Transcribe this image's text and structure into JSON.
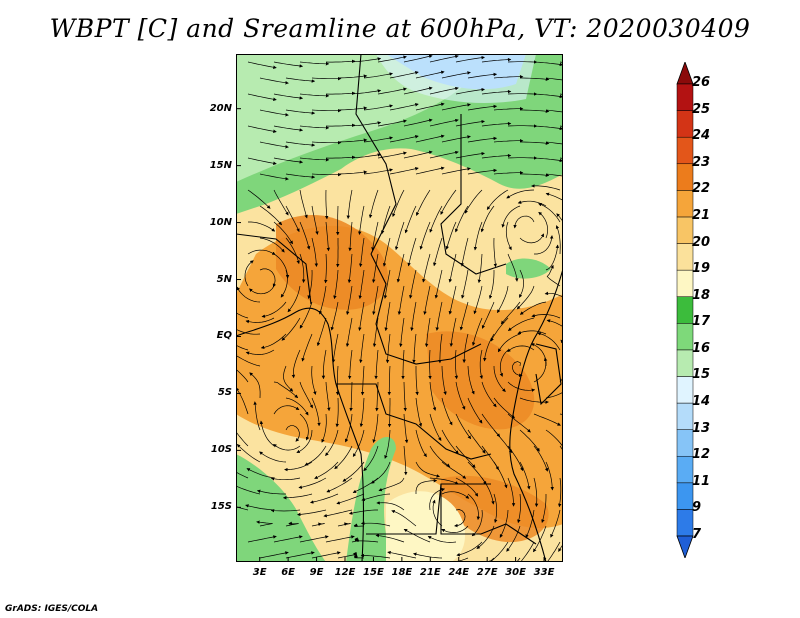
{
  "title": "WBPT [C] and Sreamline at 600hPa, VT: 2020030409",
  "footer": "GrADS: IGES/COLA",
  "map": {
    "lat_labels": [
      "20N",
      "15N",
      "10N",
      "5N",
      "EQ",
      "5S",
      "10S",
      "15S"
    ],
    "lat_values": [
      20,
      15,
      10,
      5,
      0,
      -5,
      -10,
      -15
    ],
    "lon_labels": [
      "3E",
      "6E",
      "9E",
      "12E",
      "15E",
      "18E",
      "21E",
      "24E",
      "27E",
      "30E",
      "33E"
    ],
    "lon_values": [
      3,
      6,
      9,
      12,
      15,
      18,
      21,
      24,
      27,
      30,
      33
    ],
    "lon_range": [
      0.5,
      35.0
    ],
    "lat_range": [
      -19.8,
      24.8
    ]
  },
  "colorbar": {
    "labels": [
      "7",
      "9",
      "11",
      "12",
      "13",
      "14",
      "15",
      "16",
      "17",
      "18",
      "19",
      "20",
      "21",
      "22",
      "23",
      "24",
      "25",
      "26"
    ],
    "colors": [
      "#1f5fd6",
      "#2d7be8",
      "#3c96f0",
      "#5aacf4",
      "#86c4f7",
      "#b4dcfa",
      "#e0f4ff",
      "#b7ebb0",
      "#7ed97a",
      "#3cbc3c",
      "#fef7c4",
      "#fbe19b",
      "#f8c565",
      "#f5a53a",
      "#ec7c1c",
      "#e3561a",
      "#d33416",
      "#b31212",
      "#8b0a0a"
    ]
  }
}
